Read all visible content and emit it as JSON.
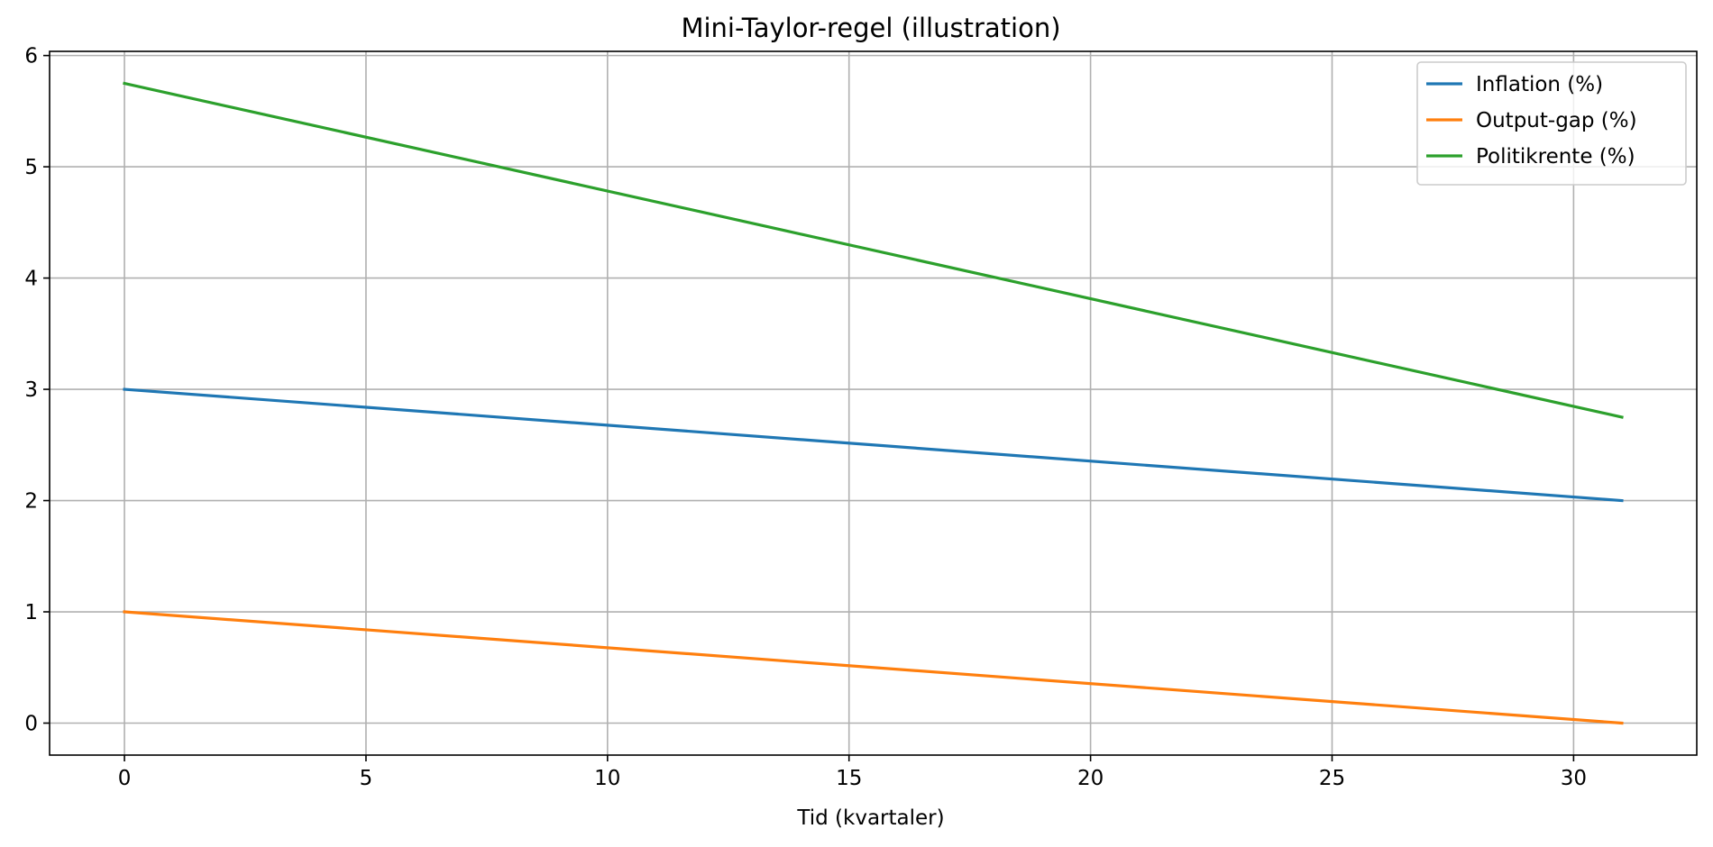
{
  "chart_data": {
    "type": "line",
    "title": "Mini-Taylor-regel (illustration)",
    "xlabel": "Tid (kvartaler)",
    "ylabel": "",
    "xlim": [
      -1.55,
      32.55
    ],
    "ylim": [
      -0.2875,
      6.0375
    ],
    "xticks": [
      0,
      5,
      10,
      15,
      20,
      25,
      30
    ],
    "yticks": [
      0,
      1,
      2,
      3,
      4,
      5,
      6
    ],
    "grid": true,
    "legend_position": "top-right",
    "series": [
      {
        "name": "Inflation (%)",
        "color": "#1f77b4",
        "x": [
          0,
          31
        ],
        "y": [
          3.0,
          2.0
        ]
      },
      {
        "name": "Output-gap (%)",
        "color": "#ff7f0e",
        "x": [
          0,
          31
        ],
        "y": [
          1.0,
          0.0
        ]
      },
      {
        "name": "Politikrente (%)",
        "color": "#2ca02c",
        "x": [
          0,
          31
        ],
        "y": [
          5.75,
          2.75
        ]
      }
    ]
  }
}
